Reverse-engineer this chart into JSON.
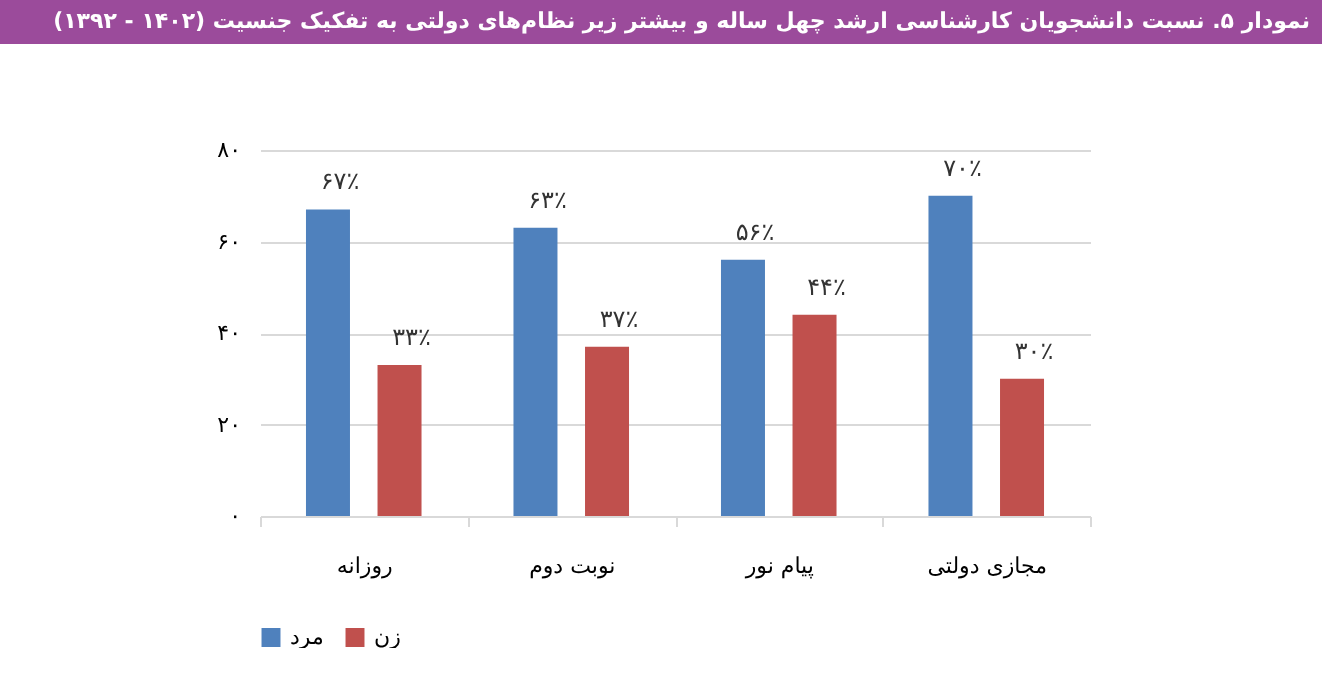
{
  "chart_data": {
    "type": "bar",
    "title": "نمودار ۵. نسبت دانشجویان کارشناسی ارشد چهل ساله و بیشتر زیر نظام‌های دولتی به تفکیک جنسیت (۱۴۰۲ - ۱۳۹۲)",
    "categories": [
      "روزانه",
      "نوبت دوم",
      "پیام نور",
      "مجازی دولتی"
    ],
    "series": [
      {
        "name": "مرد",
        "color": "#4f81bd",
        "values": [
          67,
          63,
          56,
          70
        ],
        "value_labels": [
          "۶۷٪",
          "۶۳٪",
          "۵۶٪",
          "۷۰٪"
        ]
      },
      {
        "name": "زن",
        "color": "#c0504d",
        "values": [
          33,
          37,
          44,
          30
        ],
        "value_labels": [
          "۳۳٪",
          "۳۷٪",
          "۴۴٪",
          "۳۰٪"
        ]
      }
    ],
    "ylim": [
      0,
      80
    ],
    "yticks": [
      {
        "value": 0,
        "label": "۰"
      },
      {
        "value": 20,
        "label": "۲۰"
      },
      {
        "value": 40,
        "label": "۴۰"
      },
      {
        "value": 60,
        "label": "۶۰"
      },
      {
        "value": 80,
        "label": "۸۰"
      }
    ],
    "grid": "y",
    "legend": "bottom"
  }
}
